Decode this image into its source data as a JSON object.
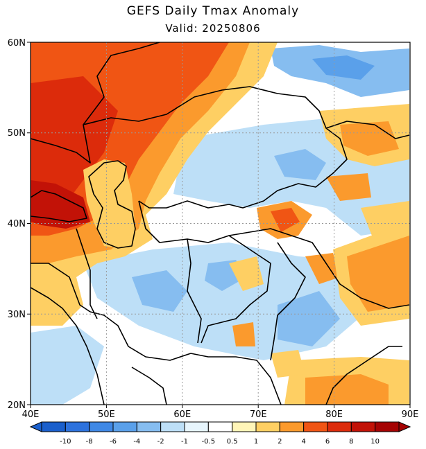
{
  "title": "GEFS Daily Tmax Anomaly",
  "subtitle": "Valid: 20250806",
  "map": {
    "lon_range": [
      40,
      90
    ],
    "lat_range": [
      20,
      60
    ],
    "lon_labels": [
      "40E",
      "50E",
      "60E",
      "70E",
      "80E",
      "90E"
    ],
    "lat_labels": [
      "20N",
      "30N",
      "40N",
      "50N",
      "60N"
    ],
    "grid": true
  },
  "colorbar": {
    "labels": [
      "-10",
      "-8",
      "-6",
      "-4",
      "-2",
      "-1",
      "-0.5",
      "0.5",
      "1",
      "2",
      "4",
      "6",
      "8",
      "10"
    ],
    "colors": [
      "#1a5fcc",
      "#2d72dd",
      "#3f88e5",
      "#5aa0ea",
      "#86bdf0",
      "#bddff7",
      "#e7f5fd",
      "#ffffff",
      "#fff5b8",
      "#fecf63",
      "#fb9a2d",
      "#f05514",
      "#dc2b0b",
      "#c21207",
      "#a50303"
    ]
  }
}
